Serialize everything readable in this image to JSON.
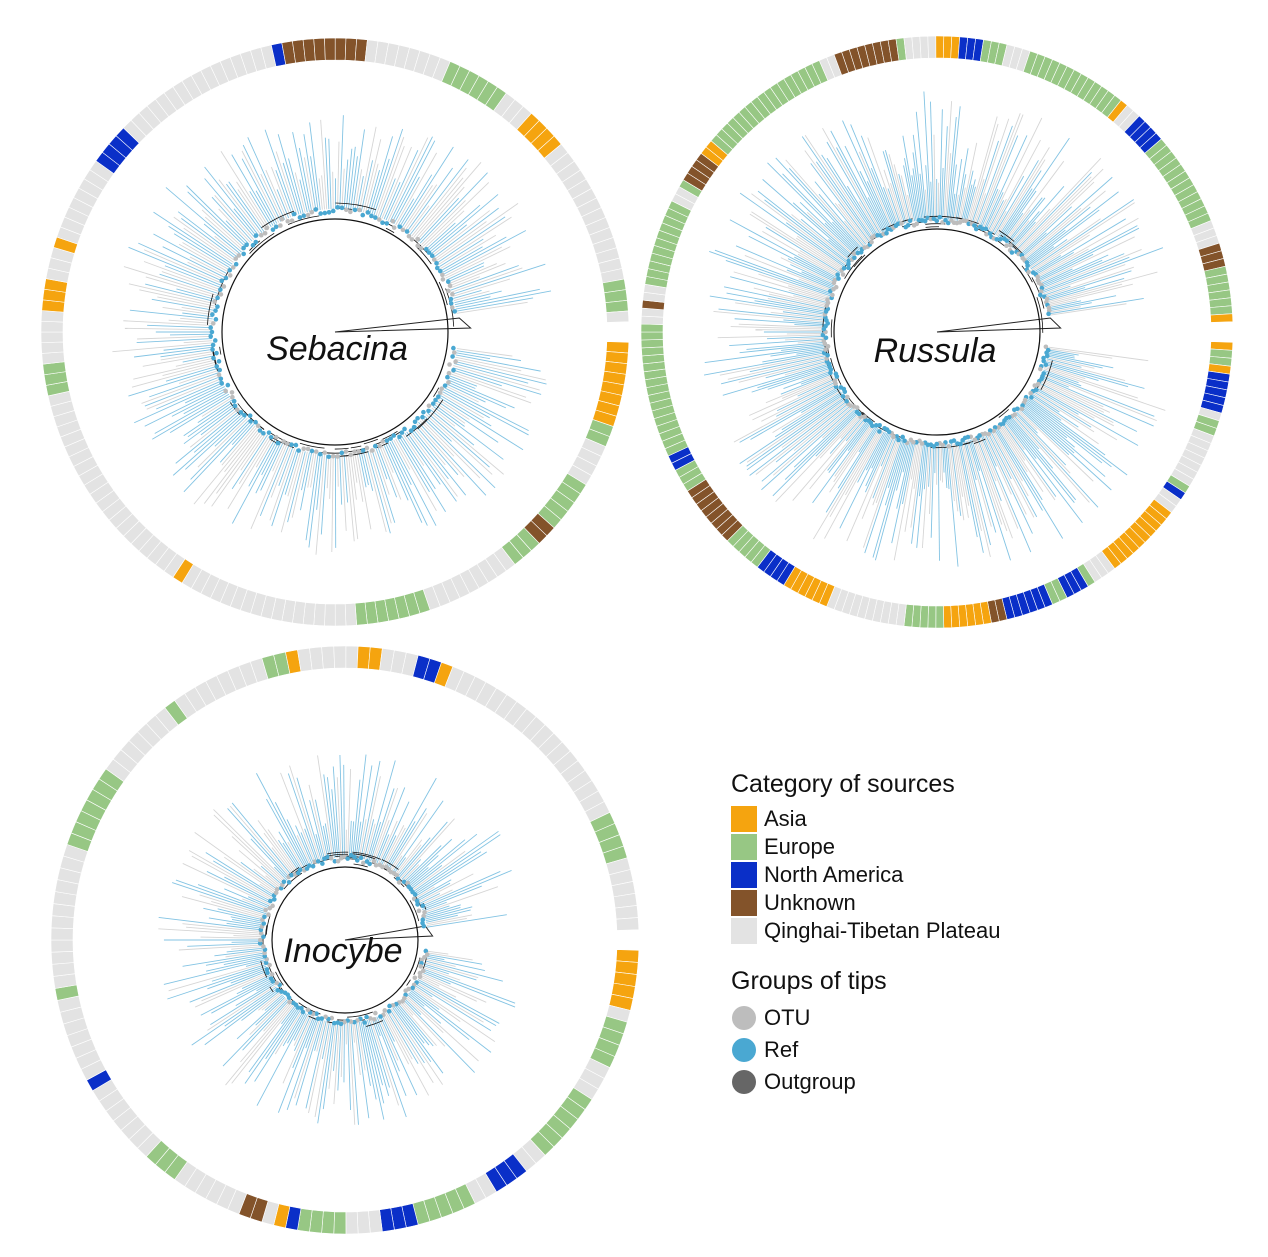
{
  "trees": [
    {
      "name": "Sebacina",
      "weights": {
        "Asia": 0.12,
        "Europe": 0.1,
        "North America": 0.07,
        "Unknown": 0.06,
        "Qinghai-Tibetan Plateau": 0.65
      },
      "seed": 11
    },
    {
      "name": "Russula",
      "weights": {
        "Asia": 0.1,
        "Europe": 0.45,
        "North America": 0.12,
        "Unknown": 0.1,
        "Qinghai-Tibetan Plateau": 0.23
      },
      "seed": 23
    },
    {
      "name": "Inocybe",
      "weights": {
        "Asia": 0.08,
        "Europe": 0.2,
        "North America": 0.15,
        "Unknown": 0.05,
        "Qinghai-Tibetan Plateau": 0.52
      },
      "seed": 37
    }
  ],
  "legend": {
    "sources_title": "Category of sources",
    "sources": [
      {
        "label": "Asia",
        "color": "#F5A40F"
      },
      {
        "label": "Europe",
        "color": "#97C784"
      },
      {
        "label": "North America",
        "color": "#0A2FC8"
      },
      {
        "label": "Unknown",
        "color": "#83532A"
      },
      {
        "label": "Qinghai-Tibetan Plateau",
        "color": "#E3E3E3"
      }
    ],
    "tips_title": "Groups of tips",
    "tips": [
      {
        "label": "OTU",
        "color": "#BDBDBD"
      },
      {
        "label": "Ref",
        "color": "#4AA8D2"
      },
      {
        "label": "Outgroup",
        "color": "#666666"
      }
    ]
  }
}
